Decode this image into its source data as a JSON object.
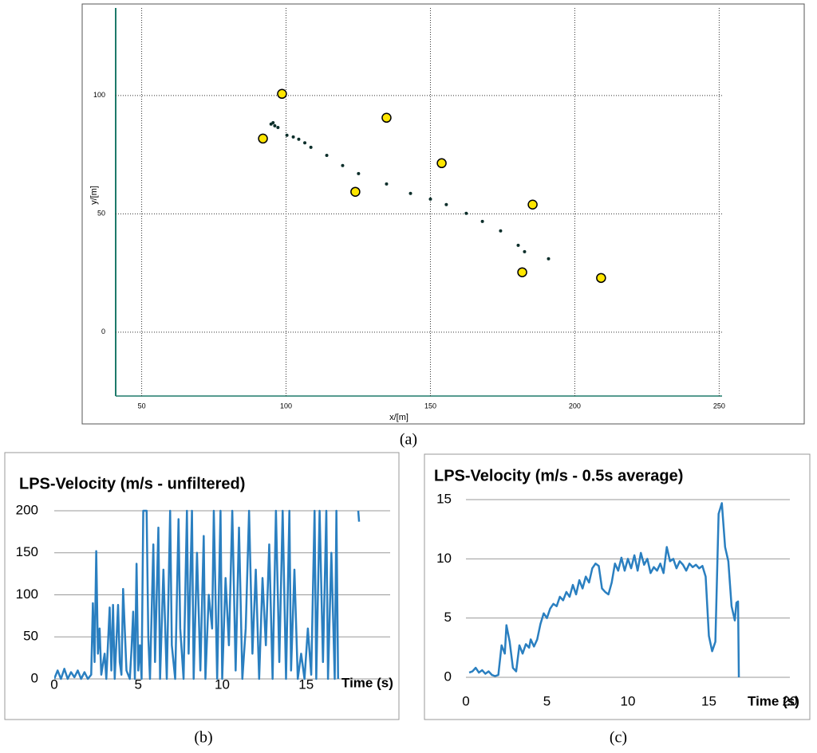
{
  "captions": [
    "(a)",
    "(b)",
    "(c)"
  ],
  "chart_data": [
    {
      "type": "scatter",
      "xlabel": "x/[m]",
      "ylabel": "y/[m]",
      "xlim": [
        41,
        251
      ],
      "xticks": [
        50,
        100,
        150,
        200,
        250
      ],
      "ylim": [
        -27,
        137
      ],
      "yticks": [
        0,
        50,
        100
      ],
      "xgrid": true,
      "ygrid": true,
      "series": [
        {
          "color": "#ffe600",
          "marker": "circle",
          "x": [
            98.6,
            92,
            134.8,
            124,
            153.9,
            185.4,
            181.8,
            209.1
          ],
          "values": [
            100.7,
            81.8,
            90.6,
            59.3,
            71.4,
            53.9,
            25.3,
            22.9
          ]
        },
        {
          "color": "#0b2e2a",
          "marker": "dot",
          "x": [
            94.8,
            95.5,
            96.1,
            97.2,
            100.3,
            102.5,
            104.4,
            106.5,
            108.6,
            114.1,
            119.6,
            125.1,
            134.8,
            143.1,
            150,
            155.5,
            162.4,
            168,
            174.3,
            180.4,
            182.6,
            190.9
          ],
          "values": [
            87.9,
            88.5,
            87.2,
            86.5,
            83.2,
            82.5,
            81.5,
            80,
            78.1,
            74.7,
            70.4,
            67,
            62.6,
            58.6,
            56.2,
            53.9,
            50.2,
            46.8,
            42.8,
            36.7,
            34,
            31
          ]
        }
      ]
    },
    {
      "type": "line",
      "title": "LPS-Velocity (m/s - unfiltered)",
      "xlabel": "Time (s)",
      "xlim": [
        0,
        20
      ],
      "xticks": [
        0,
        5,
        10,
        15
      ],
      "ylim": [
        0,
        200
      ],
      "yticks": [
        0,
        50,
        100,
        150,
        200
      ],
      "xgrid": false,
      "ygrid": true,
      "color": "#2a7fc0",
      "x": [
        0,
        0.2,
        0.4,
        0.6,
        0.8,
        1.0,
        1.2,
        1.4,
        1.6,
        1.8,
        2.0,
        2.2,
        2.3,
        2.4,
        2.5,
        2.6,
        2.7,
        2.8,
        3.0,
        3.1,
        3.3,
        3.4,
        3.5,
        3.6,
        3.8,
        3.9,
        4.0,
        4.1,
        4.3,
        4.5,
        4.6,
        4.7,
        4.8,
        4.9,
        5.0,
        5.1,
        5.2,
        5.3,
        5.5,
        5.6,
        5.7,
        5.9,
        6.0,
        6.2,
        6.3,
        6.5,
        6.7,
        6.9,
        7.0,
        7.2,
        7.4,
        7.5,
        7.7,
        7.9,
        8.0,
        8.2,
        8.3,
        8.5,
        8.7,
        8.9,
        9.0,
        9.2,
        9.4,
        9.5,
        9.7,
        9.9,
        10.0,
        10.2,
        10.4,
        10.6,
        10.8,
        11.0,
        11.2,
        11.4,
        11.6,
        11.8,
        12.0,
        12.2,
        12.4,
        12.6,
        12.8,
        13.0,
        13.2,
        13.4,
        13.6,
        13.8,
        14.0,
        14.1,
        14.3,
        14.5,
        14.7,
        14.9,
        15.1,
        15.3,
        15.5,
        15.6,
        15.8,
        16.0,
        16.2,
        16.3,
        16.5,
        16.7,
        16.8,
        16.9,
        17.5,
        18.1,
        18.15
      ],
      "values": [
        0,
        10,
        0,
        12,
        0,
        8,
        2,
        10,
        0,
        8,
        0,
        5,
        90,
        20,
        152,
        30,
        60,
        5,
        30,
        0,
        85,
        10,
        88,
        0,
        88,
        20,
        5,
        107,
        10,
        0,
        35,
        80,
        0,
        137,
        10,
        40,
        0,
        200,
        200,
        50,
        0,
        160,
        20,
        180,
        0,
        130,
        0,
        200,
        40,
        0,
        190,
        60,
        0,
        200,
        30,
        200,
        0,
        150,
        10,
        170,
        0,
        100,
        60,
        200,
        0,
        200,
        0,
        120,
        40,
        200,
        10,
        180,
        0,
        60,
        200,
        30,
        130,
        0,
        120,
        40,
        160,
        0,
        200,
        20,
        200,
        0,
        200,
        10,
        130,
        0,
        30,
        0,
        60,
        5,
        200,
        0,
        200,
        20,
        200,
        0,
        150,
        0,
        200,
        0,
        null,
        200,
        187
      ]
    },
    {
      "type": "line",
      "title": "LPS-Velocity  (m/s - 0.5s average)",
      "xlabel": "Time (s)",
      "xlim": [
        0,
        20
      ],
      "xticks": [
        0,
        5,
        10,
        15,
        20
      ],
      "ylim": [
        0,
        15
      ],
      "yticks": [
        0,
        5,
        10,
        15
      ],
      "xgrid": false,
      "ygrid": true,
      "color": "#2a7fc0",
      "x": [
        0.2,
        0.4,
        0.6,
        0.8,
        1.0,
        1.2,
        1.4,
        1.6,
        1.8,
        2.0,
        2.2,
        2.4,
        2.5,
        2.7,
        2.9,
        3.1,
        3.3,
        3.5,
        3.7,
        3.9,
        4.0,
        4.2,
        4.4,
        4.6,
        4.8,
        5.0,
        5.2,
        5.4,
        5.6,
        5.8,
        6.0,
        6.2,
        6.4,
        6.6,
        6.8,
        7.0,
        7.2,
        7.4,
        7.6,
        7.8,
        8.0,
        8.2,
        8.4,
        8.6,
        8.8,
        9.0,
        9.2,
        9.4,
        9.6,
        9.8,
        10.0,
        10.2,
        10.4,
        10.6,
        10.8,
        11.0,
        11.2,
        11.4,
        11.6,
        11.8,
        12.0,
        12.2,
        12.4,
        12.6,
        12.8,
        13.0,
        13.2,
        13.4,
        13.6,
        13.8,
        14.0,
        14.2,
        14.4,
        14.6,
        14.8,
        15.0,
        15.2,
        15.4,
        15.6,
        15.8,
        16.0,
        16.2,
        16.4,
        16.6,
        16.7,
        16.8,
        16.85
      ],
      "values": [
        0.4,
        0.5,
        0.8,
        0.4,
        0.6,
        0.3,
        0.5,
        0.2,
        0.1,
        0.2,
        2.7,
        2.0,
        4.4,
        3.0,
        0.8,
        0.5,
        2.7,
        2.0,
        2.8,
        2.5,
        3.2,
        2.6,
        3.2,
        4.5,
        5.4,
        5.0,
        5.8,
        6.2,
        6.0,
        6.8,
        6.5,
        7.2,
        6.8,
        7.8,
        7.0,
        8.2,
        7.5,
        8.5,
        8.0,
        9.2,
        9.6,
        9.4,
        7.5,
        7.2,
        7.0,
        8.0,
        9.6,
        9.0,
        10.1,
        9.0,
        10.0,
        9.2,
        10.3,
        9.0,
        10.5,
        9.5,
        10.0,
        8.8,
        9.3,
        9.0,
        9.6,
        8.8,
        11.0,
        9.8,
        10.0,
        9.2,
        9.8,
        9.5,
        9.0,
        9.6,
        9.3,
        9.5,
        9.2,
        9.4,
        8.5,
        3.5,
        2.2,
        3.0,
        13.8,
        14.7,
        11.0,
        9.8,
        6.0,
        4.8,
        6.3,
        6.4,
        0
      ]
    }
  ]
}
